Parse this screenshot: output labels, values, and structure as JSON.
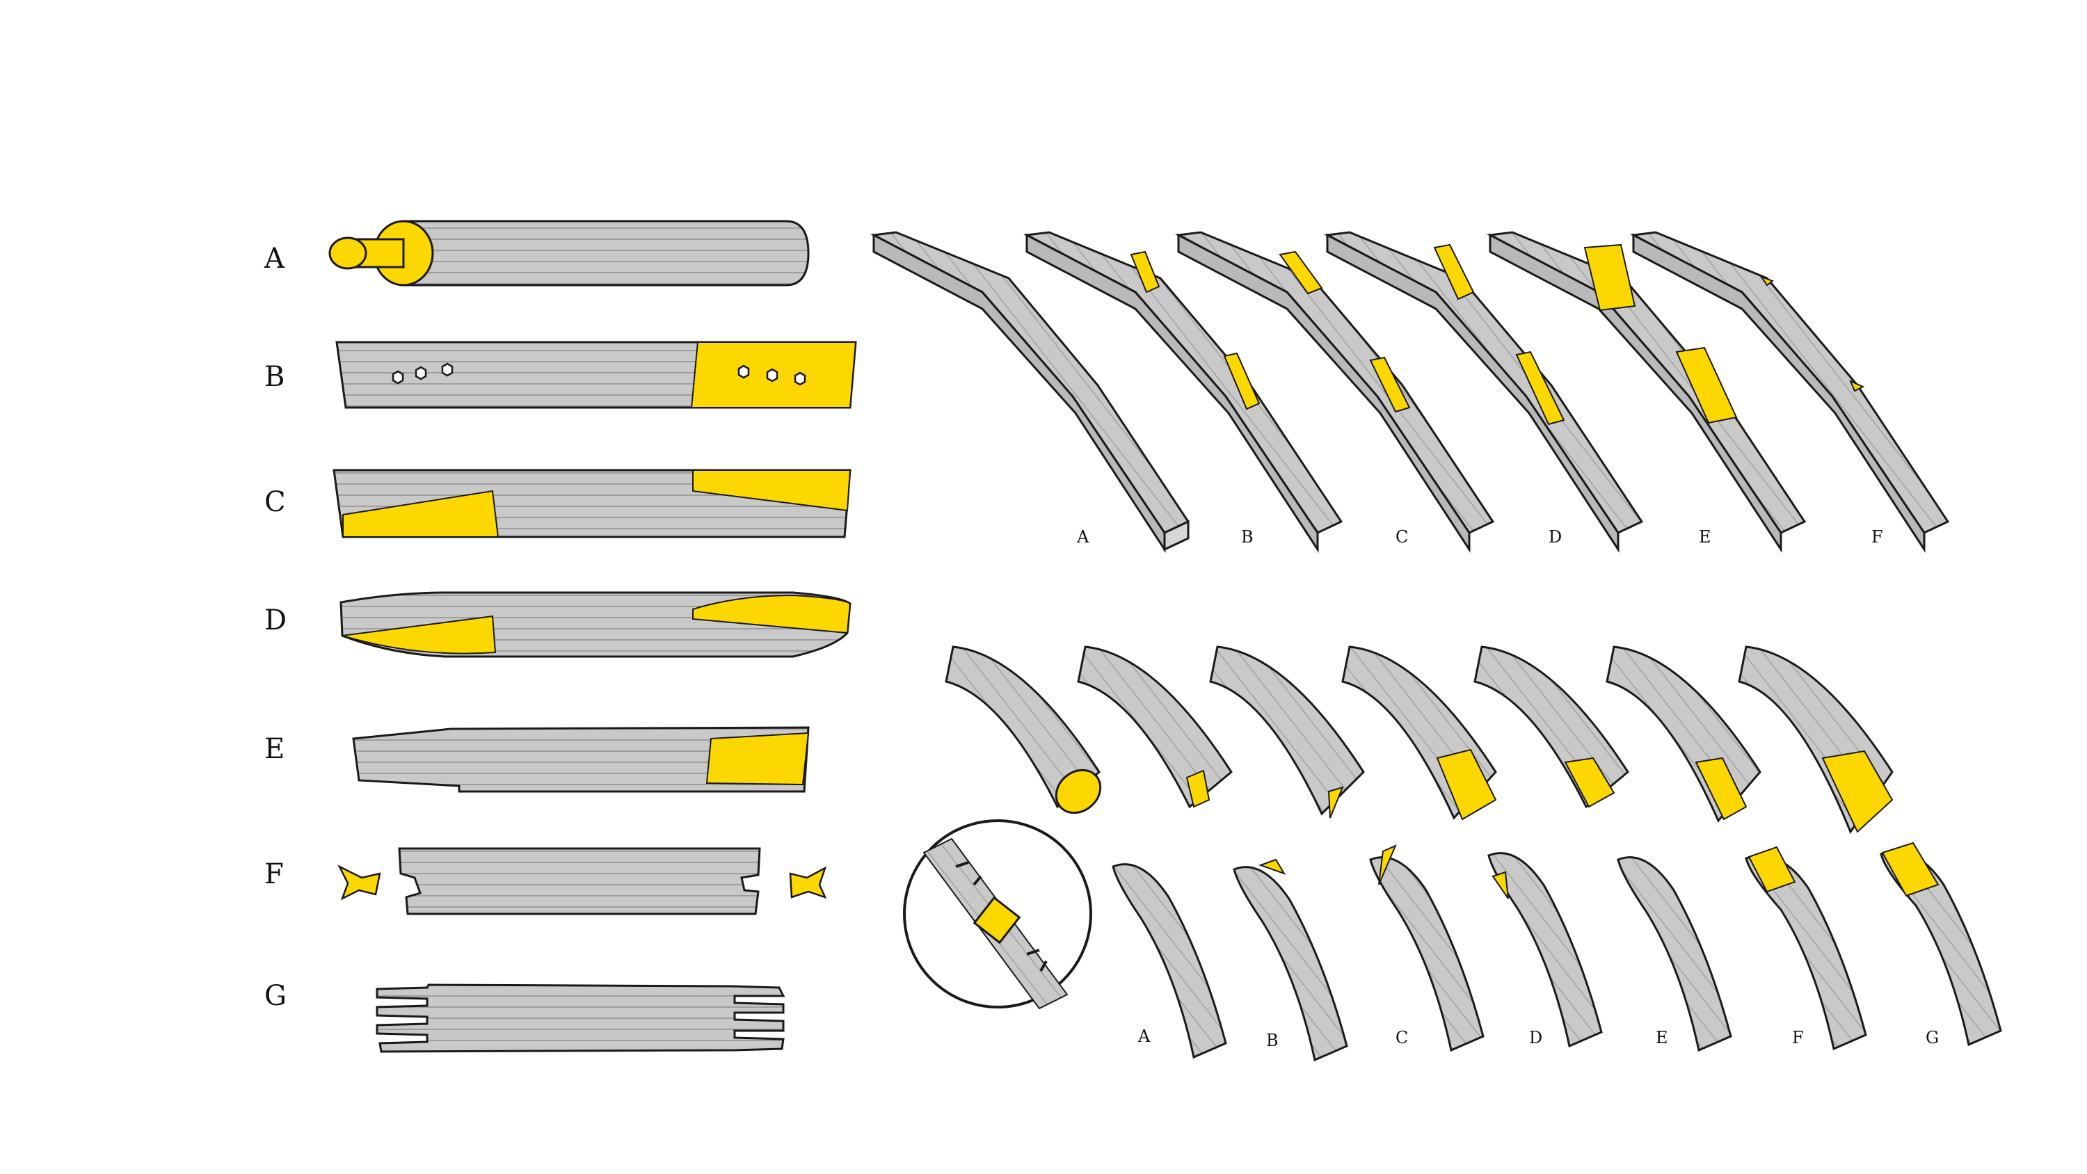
{
  "colors": {
    "wood": "#c9c9c9",
    "wood_stroke": "#1a1a1a",
    "grain": "#9a9a9a",
    "joint": "#fdd800",
    "background": "#ffffff"
  },
  "left_panel": {
    "labels": [
      "A",
      "B",
      "C",
      "D",
      "E",
      "F",
      "G"
    ]
  },
  "square_beams": {
    "labels": [
      "A",
      "B",
      "C",
      "D",
      "E",
      "F"
    ]
  },
  "round_logs": {
    "labels": [
      "A",
      "B",
      "C",
      "D",
      "E",
      "F",
      "G"
    ]
  },
  "detail_callout": {
    "icon": "magnifier-detail-icon"
  }
}
